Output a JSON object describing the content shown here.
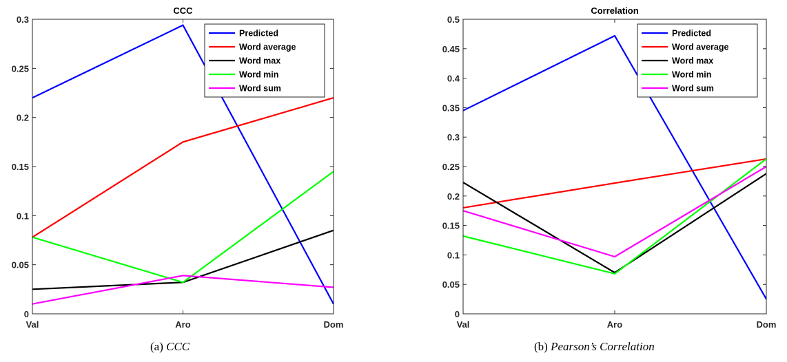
{
  "chart_data": [
    {
      "type": "line",
      "title": "CCC",
      "caption_label": "(a)",
      "caption_text": "CCC",
      "categories": [
        "Val",
        "Aro",
        "Dom"
      ],
      "ylim": [
        0,
        0.3
      ],
      "yticks": [
        0,
        0.05,
        0.1,
        0.15,
        0.2,
        0.25,
        0.3
      ],
      "ytick_labels": [
        "0",
        "0.05",
        "0.1",
        "0.15",
        "0.2",
        "0.25",
        "0.3"
      ],
      "legend_position": "top-right",
      "grid": false,
      "series": [
        {
          "name": "Predicted",
          "color": "#0000ff",
          "values": [
            0.22,
            0.294,
            0.01
          ]
        },
        {
          "name": "Word average",
          "color": "#ff0000",
          "values": [
            0.078,
            0.175,
            0.22
          ]
        },
        {
          "name": "Word max",
          "color": "#000000",
          "values": [
            0.025,
            0.032,
            0.085
          ]
        },
        {
          "name": "Word min",
          "color": "#00ff00",
          "values": [
            0.078,
            0.032,
            0.145
          ]
        },
        {
          "name": "Word sum",
          "color": "#ff00ff",
          "values": [
            0.01,
            0.039,
            0.027
          ]
        }
      ]
    },
    {
      "type": "line",
      "title": "Correlation",
      "caption_label": "(b)",
      "caption_text": "Pearson’s Correlation",
      "categories": [
        "Val",
        "Aro",
        "Dom"
      ],
      "ylim": [
        0,
        0.5
      ],
      "yticks": [
        0,
        0.05,
        0.1,
        0.15,
        0.2,
        0.25,
        0.3,
        0.35,
        0.4,
        0.45,
        0.5
      ],
      "ytick_labels": [
        "0",
        "0.05",
        "0.1",
        "0.15",
        "0.2",
        "0.25",
        "0.3",
        "0.35",
        "0.4",
        "0.45",
        "0.5"
      ],
      "legend_position": "top-right",
      "grid": false,
      "series": [
        {
          "name": "Predicted",
          "color": "#0000ff",
          "values": [
            0.345,
            0.472,
            0.025
          ]
        },
        {
          "name": "Word average",
          "color": "#ff0000",
          "values": [
            0.18,
            0.222,
            0.263
          ]
        },
        {
          "name": "Word max",
          "color": "#000000",
          "values": [
            0.223,
            0.07,
            0.238
          ]
        },
        {
          "name": "Word min",
          "color": "#00ff00",
          "values": [
            0.132,
            0.068,
            0.263
          ]
        },
        {
          "name": "Word sum",
          "color": "#ff00ff",
          "values": [
            0.175,
            0.097,
            0.25
          ]
        }
      ]
    }
  ]
}
